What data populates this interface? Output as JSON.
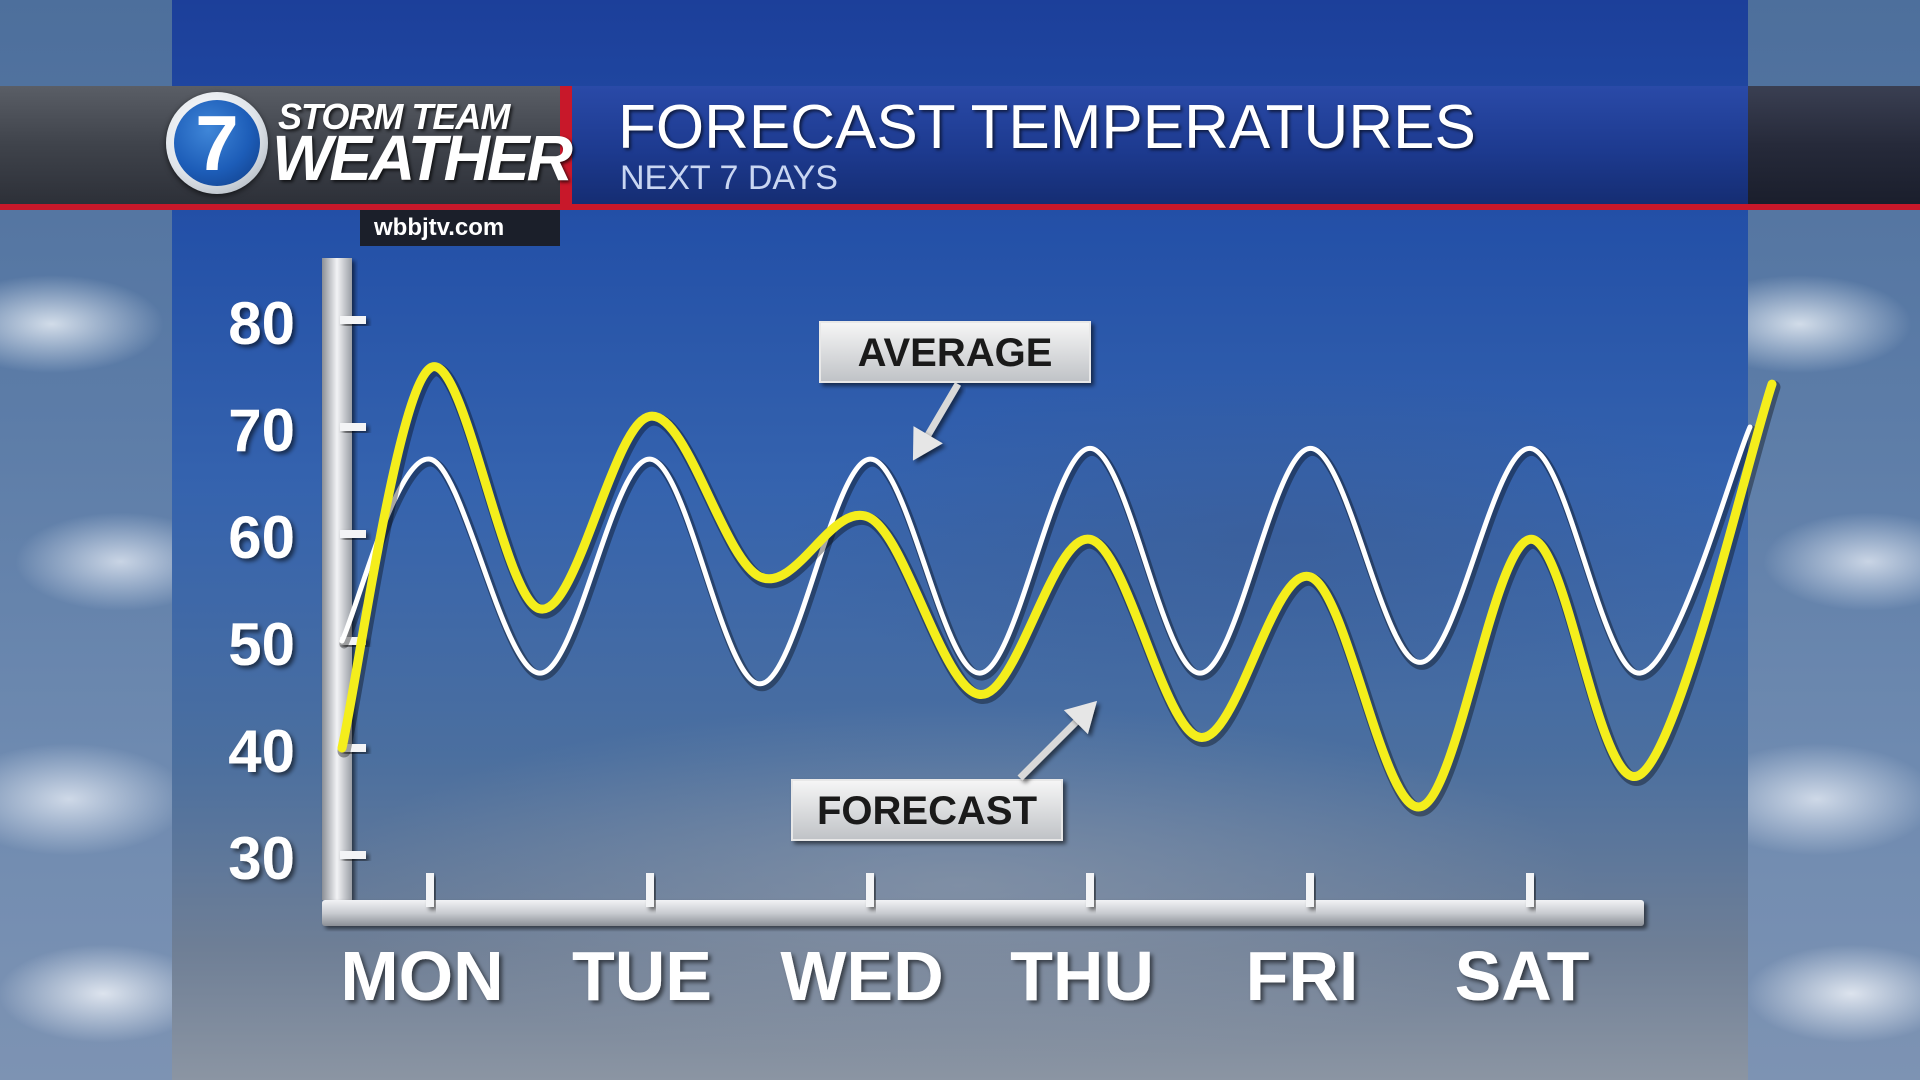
{
  "header": {
    "logo_digit": "7",
    "logo_line1": "STORM TEAM",
    "logo_line2": "WEATHER",
    "url": "wbbjtv.com",
    "title": "FORECAST TEMPERATURES",
    "subtitle": "NEXT 7 DAYS"
  },
  "colors": {
    "forecast": "#f4ee1c",
    "average": "#ffffff",
    "accent_red": "#c8182a",
    "panel_blue": "#2451a8"
  },
  "chart_data": {
    "type": "line",
    "categories": [
      "MON",
      "TUE",
      "WED",
      "THU",
      "FRI",
      "SAT"
    ],
    "yticks": [
      80,
      70,
      60,
      50,
      40,
      30
    ],
    "ylim": [
      30,
      80
    ],
    "grid": false,
    "series": [
      {
        "name": "AVERAGE",
        "values": [
          [
            -0.4,
            50
          ],
          [
            0,
            67
          ],
          [
            0.5,
            47
          ],
          [
            1,
            67
          ],
          [
            1.5,
            46
          ],
          [
            2,
            67
          ],
          [
            2.5,
            47
          ],
          [
            3,
            68
          ],
          [
            3.5,
            47
          ],
          [
            4,
            68
          ],
          [
            4.5,
            48
          ],
          [
            5,
            68
          ],
          [
            5.5,
            47
          ],
          [
            6,
            70
          ]
        ]
      },
      {
        "name": "FORECAST",
        "values": [
          [
            -0.4,
            40
          ],
          [
            0,
            75.5
          ],
          [
            0.5,
            53
          ],
          [
            1,
            71
          ],
          [
            1.5,
            56
          ],
          [
            2,
            61.5
          ],
          [
            2.5,
            45
          ],
          [
            3,
            59.5
          ],
          [
            3.5,
            41
          ],
          [
            4,
            56
          ],
          [
            4.5,
            34.5
          ],
          [
            5,
            59.5
          ],
          [
            5.5,
            37.5
          ],
          [
            6.1,
            74
          ]
        ]
      }
    ],
    "annotations": [
      {
        "label": "AVERAGE",
        "series": "AVERAGE"
      },
      {
        "label": "FORECAST",
        "series": "FORECAST"
      }
    ]
  }
}
